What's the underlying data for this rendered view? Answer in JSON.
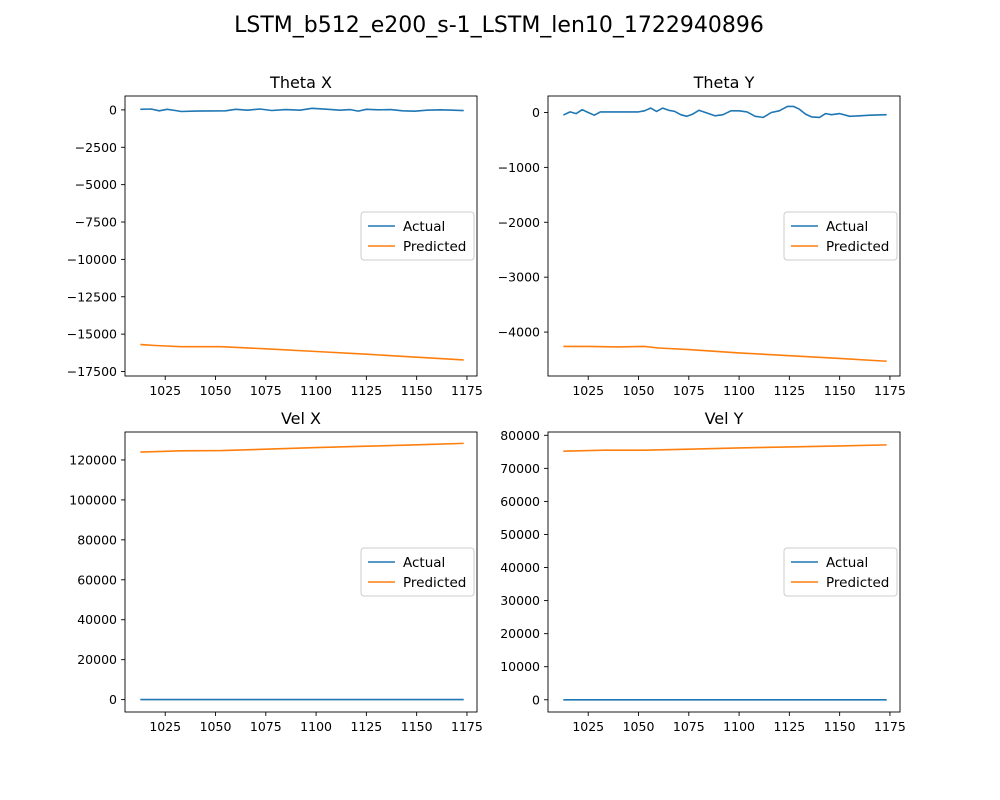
{
  "figure": {
    "suptitle": "LSTM_b512_e200_s-1_LSTM_len10_1722940896"
  },
  "colors": {
    "actual": "#1f77b4",
    "predicted": "#ff7f0e",
    "axis": "#000000",
    "background": "#ffffff"
  },
  "chart_data": [
    {
      "type": "line",
      "title": "Theta X",
      "xlabel": "",
      "ylabel": "",
      "xlim": [
        1005,
        1180
      ],
      "ylim": [
        -17800,
        930
      ],
      "grid": false,
      "legend_position": "center-right",
      "xticks": [
        1025,
        1050,
        1075,
        1100,
        1125,
        1150,
        1175
      ],
      "xtick_labels": [
        "1025",
        "1050",
        "1075",
        "1100",
        "1125",
        "1150",
        "1175"
      ],
      "yticks": [
        0,
        -2500,
        -5000,
        -7500,
        -10000,
        -12500,
        -15000,
        -17500
      ],
      "ytick_labels": [
        "0",
        "−2500",
        "−5000",
        "−7500",
        "−10000",
        "−12500",
        "−15000",
        "−17500"
      ],
      "series": [
        {
          "name": "Actual",
          "color": "#1f77b4",
          "x": [
            1013,
            1018,
            1022,
            1026,
            1030,
            1033,
            1040,
            1055,
            1060,
            1066,
            1072,
            1078,
            1085,
            1092,
            1098,
            1105,
            1112,
            1117,
            1121,
            1125,
            1131,
            1137,
            1143,
            1149,
            1155,
            1162,
            1168,
            1173
          ],
          "y": [
            40,
            60,
            -60,
            40,
            -40,
            -110,
            -80,
            -60,
            40,
            -20,
            60,
            -40,
            20,
            -20,
            110,
            50,
            -20,
            20,
            -80,
            40,
            10,
            20,
            -60,
            -90,
            -20,
            10,
            -20,
            -40
          ]
        },
        {
          "name": "Predicted",
          "color": "#ff7f0e",
          "x": [
            1013,
            1020,
            1033,
            1053,
            1075,
            1100,
            1125,
            1150,
            1173
          ],
          "y": [
            -15700,
            -15760,
            -15840,
            -15840,
            -15980,
            -16160,
            -16340,
            -16540,
            -16720
          ]
        }
      ]
    },
    {
      "type": "line",
      "title": "Theta Y",
      "xlabel": "",
      "ylabel": "",
      "xlim": [
        1005,
        1180
      ],
      "ylim": [
        -4800,
        300
      ],
      "grid": false,
      "legend_position": "center-right",
      "xticks": [
        1025,
        1050,
        1075,
        1100,
        1125,
        1150,
        1175
      ],
      "xtick_labels": [
        "1025",
        "1050",
        "1075",
        "1100",
        "1125",
        "1150",
        "1175"
      ],
      "yticks": [
        0,
        -1000,
        -2000,
        -3000,
        -4000
      ],
      "ytick_labels": [
        "0",
        "−1000",
        "−2000",
        "−3000",
        "−4000"
      ],
      "series": [
        {
          "name": "Actual",
          "color": "#1f77b4",
          "x": [
            1013,
            1016,
            1019,
            1022,
            1025,
            1028,
            1031,
            1035,
            1040,
            1045,
            1050,
            1053,
            1056,
            1059,
            1062,
            1065,
            1068,
            1071,
            1074,
            1077,
            1080,
            1084,
            1088,
            1092,
            1096,
            1100,
            1104,
            1108,
            1112,
            1116,
            1120,
            1124,
            1127,
            1130,
            1133,
            1136,
            1140,
            1143,
            1146,
            1150,
            1155,
            1160,
            1165,
            1173
          ],
          "y": [
            -40,
            10,
            -20,
            50,
            0,
            -50,
            10,
            10,
            10,
            10,
            10,
            30,
            80,
            20,
            80,
            40,
            20,
            -40,
            -70,
            -30,
            40,
            -10,
            -60,
            -40,
            30,
            30,
            10,
            -70,
            -90,
            0,
            30,
            110,
            110,
            60,
            -30,
            -80,
            -90,
            -20,
            -40,
            -20,
            -70,
            -60,
            -50,
            -40
          ]
        },
        {
          "name": "Predicted",
          "color": "#ff7f0e",
          "x": [
            1013,
            1025,
            1040,
            1053,
            1060,
            1075,
            1100,
            1125,
            1150,
            1173
          ],
          "y": [
            -4260,
            -4260,
            -4270,
            -4260,
            -4290,
            -4320,
            -4380,
            -4430,
            -4480,
            -4530
          ]
        }
      ]
    },
    {
      "type": "line",
      "title": "Vel X",
      "xlabel": "",
      "ylabel": "",
      "xlim": [
        1005,
        1180
      ],
      "ylim": [
        -6200,
        134000
      ],
      "grid": false,
      "legend_position": "center-right",
      "xticks": [
        1025,
        1050,
        1075,
        1100,
        1125,
        1150,
        1175
      ],
      "xtick_labels": [
        "1025",
        "1050",
        "1075",
        "1100",
        "1125",
        "1150",
        "1175"
      ],
      "yticks": [
        0,
        20000,
        40000,
        60000,
        80000,
        100000,
        120000
      ],
      "ytick_labels": [
        "0",
        "20000",
        "40000",
        "60000",
        "80000",
        "100000",
        "120000"
      ],
      "series": [
        {
          "name": "Actual",
          "color": "#1f77b4",
          "x": [
            1013,
            1040,
            1075,
            1100,
            1125,
            1150,
            1173
          ],
          "y": [
            0,
            0,
            0,
            0,
            0,
            0,
            0
          ]
        },
        {
          "name": "Predicted",
          "color": "#ff7f0e",
          "x": [
            1013,
            1033,
            1053,
            1075,
            1100,
            1125,
            1150,
            1173
          ],
          "y": [
            124000,
            124600,
            124700,
            125400,
            126200,
            126900,
            127600,
            128300
          ]
        }
      ]
    },
    {
      "type": "line",
      "title": "Vel Y",
      "xlabel": "",
      "ylabel": "",
      "xlim": [
        1005,
        1180
      ],
      "ylim": [
        -3700,
        81000
      ],
      "grid": false,
      "legend_position": "center-right",
      "xticks": [
        1025,
        1050,
        1075,
        1100,
        1125,
        1150,
        1175
      ],
      "xtick_labels": [
        "1025",
        "1050",
        "1075",
        "1100",
        "1125",
        "1150",
        "1175"
      ],
      "yticks": [
        0,
        10000,
        20000,
        30000,
        40000,
        50000,
        60000,
        70000,
        80000
      ],
      "ytick_labels": [
        "0",
        "10000",
        "20000",
        "30000",
        "40000",
        "50000",
        "60000",
        "70000",
        "80000"
      ],
      "series": [
        {
          "name": "Actual",
          "color": "#1f77b4",
          "x": [
            1013,
            1040,
            1075,
            1100,
            1125,
            1150,
            1173
          ],
          "y": [
            0,
            0,
            0,
            0,
            0,
            0,
            0
          ]
        },
        {
          "name": "Predicted",
          "color": "#ff7f0e",
          "x": [
            1013,
            1033,
            1053,
            1075,
            1100,
            1125,
            1150,
            1173
          ],
          "y": [
            75200,
            75500,
            75500,
            75800,
            76200,
            76500,
            76800,
            77100
          ]
        }
      ]
    }
  ]
}
